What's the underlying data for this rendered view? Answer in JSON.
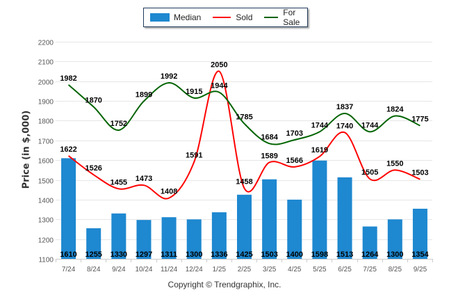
{
  "legend": {
    "items": [
      {
        "label": "Median",
        "type": "bar",
        "color": "#1e88d0"
      },
      {
        "label": "Sold",
        "type": "line",
        "color": "#ff0000"
      },
      {
        "label": "For Sale",
        "type": "line",
        "color": "#006400"
      }
    ]
  },
  "copyright": "Copyright © Trendgraphix, Inc.",
  "chart_data": {
    "type": "bar",
    "title": "",
    "xlabel": "",
    "ylabel": "Price (in $,000)",
    "ylim": [
      1100,
      2200
    ],
    "yticks": [
      1100,
      1200,
      1300,
      1400,
      1500,
      1600,
      1700,
      1800,
      1900,
      2000,
      2100,
      2200
    ],
    "grid": true,
    "legend_position": "top-center",
    "categories": [
      "7/24",
      "8/24",
      "9/24",
      "10/24",
      "11/24",
      "12/24",
      "1/25",
      "2/25",
      "3/25",
      "4/25",
      "5/25",
      "6/25",
      "7/25",
      "8/25",
      "9/25"
    ],
    "series": [
      {
        "name": "Median",
        "type": "bar",
        "color": "#1e88d0",
        "values": [
          1610,
          1255,
          1330,
          1297,
          1311,
          1300,
          1336,
          1425,
          1503,
          1400,
          1598,
          1513,
          1264,
          1300,
          1354
        ]
      },
      {
        "name": "Sold",
        "type": "line",
        "color": "#ff0000",
        "values": [
          1622,
          1526,
          1455,
          1473,
          1408,
          1591,
          2050,
          1458,
          1589,
          1566,
          1619,
          1740,
          1505,
          1550,
          1503
        ]
      },
      {
        "name": "For Sale",
        "type": "line",
        "color": "#006400",
        "values": [
          1982,
          1870,
          1752,
          1899,
          1992,
          1915,
          1944,
          1785,
          1684,
          1703,
          1744,
          1837,
          1744,
          1824,
          1775
        ]
      }
    ]
  }
}
